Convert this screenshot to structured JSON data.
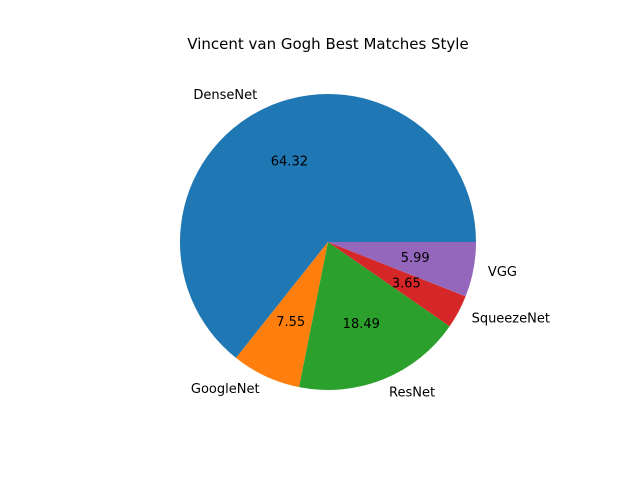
{
  "chart_data": {
    "type": "pie",
    "title": "Vincent van Gogh Best Matches Style",
    "labels": [
      "DenseNet",
      "GoogleNet",
      "ResNet",
      "SqueezeNet",
      "VGG"
    ],
    "values": [
      64.32,
      7.55,
      18.49,
      3.65,
      5.99
    ],
    "value_labels": [
      "64.32",
      "7.55",
      "18.49",
      "3.65",
      "5.99"
    ],
    "colors": [
      "#1f77b4",
      "#ff7f0e",
      "#2ca02c",
      "#d62728",
      "#9467bd"
    ],
    "start_angle_deg": 0,
    "direction": "counterclockwise",
    "legend": "none"
  }
}
